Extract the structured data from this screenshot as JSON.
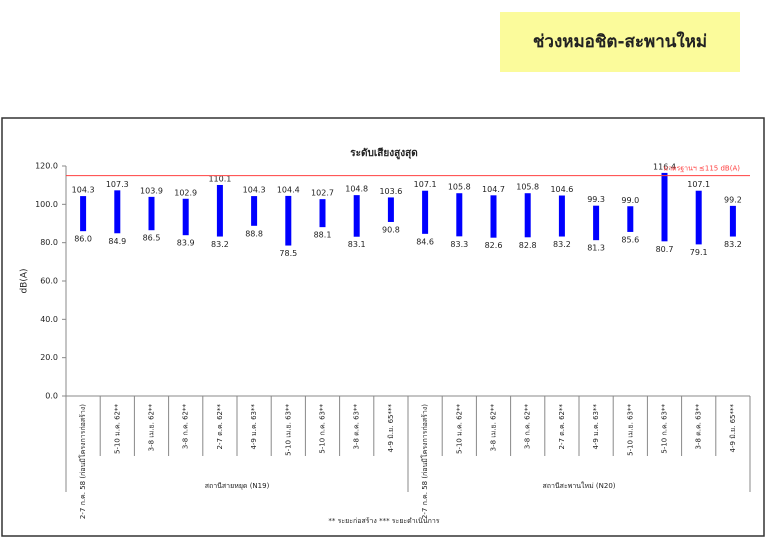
{
  "header": {
    "title": "ช่วงหมอชิต-สะพานใหม่"
  },
  "chart_data": {
    "type": "range-bar",
    "title": "ระดับเสียงสูงสุด",
    "y_label": "dB(A)",
    "color": "#0000ff",
    "categories": [
      "2-7 ก.ค. 58 (ก่อนมีโครงการก่อสร้าง)",
      "5-10 ม.ค. 62**",
      "3-8 เม.ย. 62**",
      "3-8 ก.ค. 62**",
      "2-7 ต.ค. 62**",
      "4-9 ม.ค. 63**",
      "5-10 เม.ย. 63**",
      "5-10 ก.ค. 63**",
      "3-8 ต.ค. 63**",
      "4-9 มิ.ย. 65***",
      "2-7 ก.ค. 58 (ก่อนมีโครงการก่อสร้าง)",
      "5-10 ม.ค. 62**",
      "3-8 เม.ย. 62**",
      "3-8 ก.ค. 62**",
      "2-7 ต.ค. 62**",
      "4-9 ม.ค. 63**",
      "5-10 เม.ย. 63**",
      "5-10 ก.ค. 63**",
      "3-8 ต.ค. 63**",
      "4-9 มิ.ย. 65***"
    ],
    "groups": [
      {
        "label": "สถานีสายหยุด (N19)",
        "size": 10
      },
      {
        "label": "สถานีสะพานใหม่   (N20)",
        "size": 10
      }
    ],
    "series": [
      {
        "values": [
          86.0,
          84.9,
          86.5,
          83.9,
          83.2,
          88.8,
          78.5,
          88.1,
          83.1,
          90.8,
          84.6,
          83.3,
          82.6,
          82.8,
          83.2,
          81.3,
          85.6,
          80.7,
          79.1,
          83.2
        ],
        "value_labels": [
          "86.0",
          "84.9",
          "86.5",
          "83.9",
          "83.2",
          "88.8",
          "78.5",
          "88.1",
          "83.1",
          "90.8",
          "84.6",
          "83.3",
          "82.6",
          "82.8",
          "83.2",
          "81.3",
          "85.6",
          "80.7",
          "79.1",
          "83.2"
        ]
      },
      {
        "values": [
          104.3,
          107.3,
          103.9,
          102.9,
          110.1,
          104.3,
          104.4,
          102.7,
          104.8,
          103.6,
          107.1,
          105.8,
          104.7,
          105.8,
          104.6,
          99.3,
          99.0,
          116.4,
          107.1,
          99.2
        ],
        "value_labels": [
          "104.3",
          "107.3",
          "103.9",
          "102.9",
          "110.1",
          "104.3",
          "104.4",
          "102.7",
          "104.8",
          "103.6",
          "107.1",
          "105.8",
          "104.7",
          "105.8",
          "104.6",
          "99.3",
          "99.0",
          "116.4",
          "107.1",
          "99.2"
        ]
      }
    ],
    "reference_line": {
      "value": 115,
      "label": "มาตรฐานฯ ≤115 dB(A)",
      "color": "#ff4040"
    },
    "ylim": [
      0,
      120
    ],
    "yticks": [
      {
        "value": 0,
        "label": "0.0"
      },
      {
        "value": 20,
        "label": "20.0"
      },
      {
        "value": 40,
        "label": "40.0"
      },
      {
        "value": 60,
        "label": "60.0"
      },
      {
        "value": 80,
        "label": "80.0"
      },
      {
        "value": 100,
        "label": "100.0"
      },
      {
        "value": 120,
        "label": "120.0"
      }
    ],
    "footnote": "** ระยะก่อสร้าง    *** ระยะดำเนินการ"
  }
}
